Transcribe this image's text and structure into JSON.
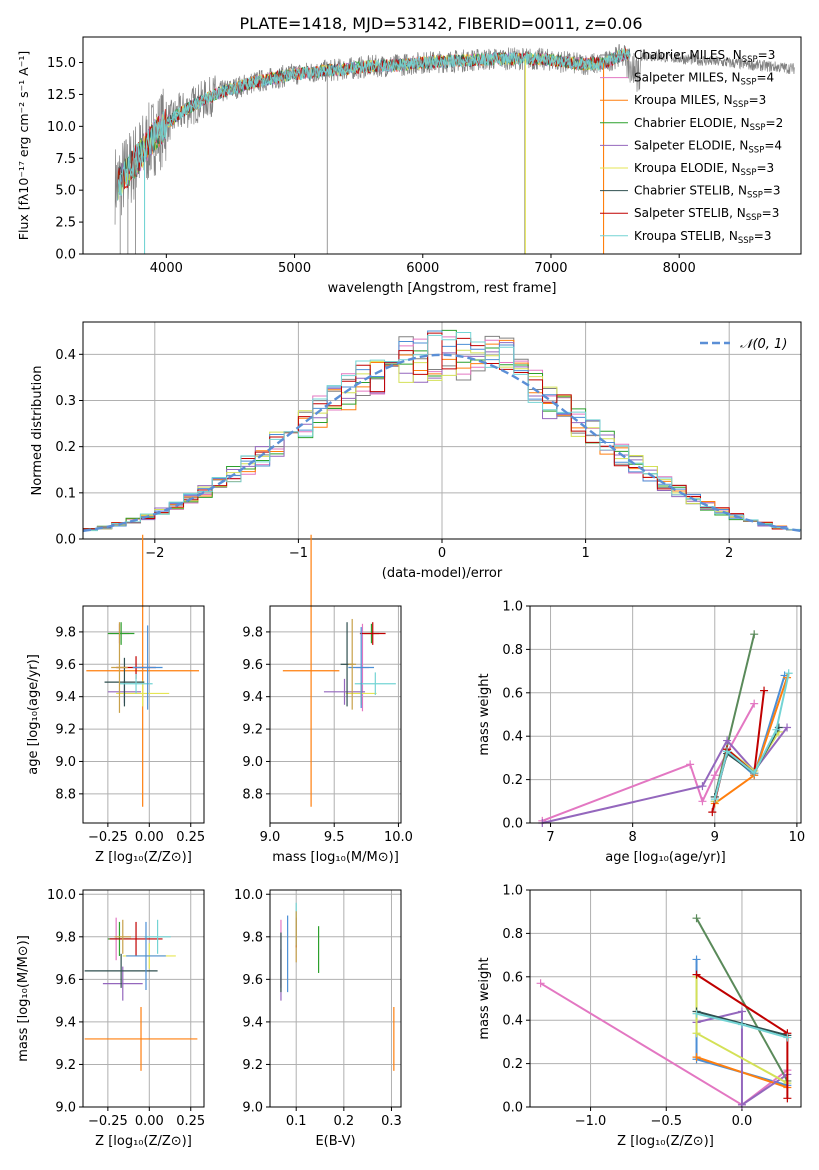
{
  "figure_title": "PLATE=1418, MJD=53142, FIBERID=0011, z=0.06",
  "colors": {
    "data_spectrum": "#808080",
    "series": [
      "#e377c2",
      "#ff7f0e",
      "#2ca02c",
      "#9467bd",
      "#e6e654",
      "#2f4f4f",
      "#c00000",
      "#74d4d4",
      "#4c8fd6",
      "#c8a14a"
    ],
    "normal_curve": "#5b8fd6",
    "grid": "#b0b0b0"
  },
  "legend_spectrum": [
    {
      "label": "Chabrier MILES, N",
      "sub": "SSP",
      "tail": "=3",
      "color": "#808080"
    },
    {
      "label": "Salpeter MILES, N",
      "sub": "SSP",
      "tail": "=4",
      "color": "#e377c2"
    },
    {
      "label": "Kroupa MILES, N",
      "sub": "SSP",
      "tail": "=3",
      "color": "#ff7f0e"
    },
    {
      "label": "Chabrier ELODIE, N",
      "sub": "SSP",
      "tail": "=2",
      "color": "#2ca02c"
    },
    {
      "label": "Salpeter ELODIE, N",
      "sub": "SSP",
      "tail": "=4",
      "color": "#9467bd"
    },
    {
      "label": "Kroupa ELODIE, N",
      "sub": "SSP",
      "tail": "=3",
      "color": "#e6e654"
    },
    {
      "label": "Chabrier STELIB, N",
      "sub": "SSP",
      "tail": "=3",
      "color": "#2f4f4f"
    },
    {
      "label": "Salpeter STELIB, N",
      "sub": "SSP",
      "tail": "=3",
      "color": "#c00000"
    },
    {
      "label": "Kroupa STELIB, N",
      "sub": "SSP",
      "tail": "=3",
      "color": "#74d4d4"
    }
  ],
  "legend_hist": {
    "label": "𝒩(0, 1)"
  },
  "chart_data": [
    {
      "id": "spectrum",
      "type": "line",
      "xlabel": "wavelength [Angstrom, rest frame]",
      "ylabel": "Flux [f",
      "ylabel_display": "Flux [fλ10⁻¹⁷ erg cm⁻² s⁻¹ A⁻¹]",
      "xlim": [
        3350,
        8950
      ],
      "ylim": [
        0,
        17
      ],
      "xticks": [
        "4000",
        "5000",
        "6000",
        "7000",
        "8000"
      ],
      "yticks": [
        "0.0",
        "2.5",
        "5.0",
        "7.5",
        "10.0",
        "12.5",
        "15.0"
      ],
      "continuum": {
        "x": [
          3620,
          3700,
          3800,
          3900,
          4000,
          4100,
          4200,
          4300,
          4400,
          4500,
          4600,
          4700,
          4800,
          4900,
          5000,
          5200,
          5400,
          5600,
          5800,
          6000,
          6200,
          6400,
          6600,
          6800,
          7000,
          7200,
          7400,
          7550,
          7700
        ],
        "y": [
          5.5,
          6.5,
          7.8,
          9.2,
          10.2,
          11.0,
          11.6,
          12.1,
          12.6,
          12.9,
          13.2,
          13.5,
          13.7,
          13.9,
          14.1,
          14.3,
          14.5,
          14.7,
          14.8,
          15.0,
          15.1,
          15.2,
          15.3,
          15.3,
          15.2,
          14.9,
          14.9,
          15.6,
          15.6
        ]
      },
      "model_end": 7620,
      "data_end": 8900,
      "grid": false
    },
    {
      "id": "residual_hist",
      "type": "area",
      "xlabel": "(data-model)/error",
      "ylabel": "Normed distribution",
      "xlim": [
        -2.5,
        2.5
      ],
      "ylim": [
        0,
        0.47
      ],
      "xticks": [
        "−2",
        "−1",
        "0",
        "1",
        "2"
      ],
      "yticks": [
        "0.0",
        "0.1",
        "0.2",
        "0.3",
        "0.4"
      ],
      "bin_width": 0.1,
      "legend_placement": "top-right",
      "grid": true
    },
    {
      "id": "age_vs_Z",
      "type": "scatter",
      "xlabel": "Z [log₁₀(Z/Z⊙)]",
      "ylabel": "age  [log₁₀(age/yr)]",
      "xlim": [
        -0.4,
        0.33
      ],
      "ylim": [
        8.62,
        9.96
      ],
      "xticks": [
        "−0.25",
        "0.00",
        "0.25"
      ],
      "yticks": [
        "8.8",
        "9.0",
        "9.2",
        "9.4",
        "9.6",
        "9.8"
      ],
      "points": [
        {
          "x": -0.18,
          "y": 9.79,
          "xerr": 0.06,
          "yerr": 0.06
        },
        {
          "x": -0.04,
          "y": 9.56,
          "xerr": 0.34,
          "yerr": 0.84
        },
        {
          "x": -0.17,
          "y": 9.79,
          "xerr": 0.08,
          "yerr": 0.07
        },
        {
          "x": -0.15,
          "y": 9.43,
          "xerr": 0.1,
          "yerr": 0.07
        },
        {
          "x": -0.04,
          "y": 9.42,
          "xerr": 0.16,
          "yerr": 0.08
        },
        {
          "x": -0.15,
          "y": 9.49,
          "xerr": 0.12,
          "yerr": 0.15
        },
        {
          "x": -0.08,
          "y": 9.58,
          "xerr": 0.12,
          "yerr": 0.07
        },
        {
          "x": -0.08,
          "y": 9.48,
          "xerr": 0.1,
          "yerr": 0.06
        },
        {
          "x": -0.01,
          "y": 9.58,
          "xerr": 0.09,
          "yerr": 0.26
        },
        {
          "x": -0.18,
          "y": 9.58,
          "xerr": 0.05,
          "yerr": 0.28
        }
      ],
      "grid": true
    },
    {
      "id": "age_vs_mass",
      "type": "scatter",
      "xlabel": "mass [log₁₀(M/M⊙)]",
      "ylabel": "",
      "xlim": [
        9.0,
        10.02
      ],
      "ylim": [
        8.62,
        9.96
      ],
      "xticks": [
        "9.0",
        "9.5",
        "10.0"
      ],
      "yticks": [
        "8.8",
        "9.0",
        "9.2",
        "9.4",
        "9.6",
        "9.8"
      ],
      "points": [
        {
          "x": 9.72,
          "y": 9.58,
          "xerr": 0.05,
          "yerr": 0.27
        },
        {
          "x": 9.32,
          "y": 9.56,
          "xerr": 0.22,
          "yerr": 0.84
        },
        {
          "x": 9.79,
          "y": 9.79,
          "xerr": 0.06,
          "yerr": 0.06
        },
        {
          "x": 9.58,
          "y": 9.43,
          "xerr": 0.16,
          "yerr": 0.08
        },
        {
          "x": 9.71,
          "y": 9.42,
          "xerr": 0.12,
          "yerr": 0.07
        },
        {
          "x": 9.6,
          "y": 9.6,
          "xerr": 0.05,
          "yerr": 0.26
        },
        {
          "x": 9.8,
          "y": 9.79,
          "xerr": 0.1,
          "yerr": 0.07
        },
        {
          "x": 9.82,
          "y": 9.48,
          "xerr": 0.16,
          "yerr": 0.07
        },
        {
          "x": 9.71,
          "y": 9.58,
          "xerr": 0.1,
          "yerr": 0.25
        },
        {
          "x": 9.64,
          "y": 9.6,
          "xerr": 0.03,
          "yerr": 0.28
        }
      ],
      "grid": true
    },
    {
      "id": "mass_weight_vs_age",
      "type": "line",
      "xlabel": "age  [log₁₀(age/yr)]",
      "ylabel": "mass weight",
      "xlim": [
        6.75,
        10.05
      ],
      "ylim": [
        0,
        1
      ],
      "xticks": [
        "7",
        "8",
        "9",
        "10"
      ],
      "yticks": [
        "0.0",
        "0.2",
        "0.4",
        "0.6",
        "0.8",
        "1.0"
      ],
      "series": [
        {
          "x": [
            9.0,
            9.15,
            9.48,
            9.85
          ],
          "y": [
            0.1,
            0.33,
            0.22,
            0.68
          ]
        },
        {
          "x": [
            6.9,
            8.7,
            8.85,
            9.0,
            9.48
          ],
          "y": [
            0.01,
            0.27,
            0.1,
            0.22,
            0.55
          ]
        },
        {
          "x": [
            9.0,
            9.48,
            9.88
          ],
          "y": [
            0.09,
            0.22,
            0.67
          ]
        },
        {
          "x": [
            9.0,
            9.48
          ],
          "y": [
            0.12,
            0.87
          ]
        },
        {
          "x": [
            6.9,
            8.85,
            9.15,
            9.48,
            9.88
          ],
          "y": [
            0.0,
            0.17,
            0.38,
            0.24,
            0.44
          ]
        },
        {
          "x": [
            9.0,
            9.15,
            9.48,
            9.78
          ],
          "y": [
            0.1,
            0.34,
            0.24,
            0.42
          ]
        },
        {
          "x": [
            9.0,
            9.15,
            9.48,
            9.78
          ],
          "y": [
            0.12,
            0.32,
            0.23,
            0.44
          ]
        },
        {
          "x": [
            8.97,
            9.15,
            9.48,
            9.6
          ],
          "y": [
            0.05,
            0.34,
            0.23,
            0.61
          ]
        },
        {
          "x": [
            9.0,
            9.15,
            9.48,
            9.75,
            9.9
          ],
          "y": [
            0.11,
            0.33,
            0.23,
            0.43,
            0.69
          ]
        }
      ],
      "grid": true
    },
    {
      "id": "mass_vs_Z",
      "type": "scatter",
      "xlabel": "Z [log₁₀(Z/Z⊙)]",
      "ylabel": "mass [log₁₀(M/M⊙)]",
      "xlim": [
        -0.4,
        0.33
      ],
      "ylim": [
        9.0,
        10.02
      ],
      "xticks": [
        "−0.25",
        "0.00",
        "0.25"
      ],
      "yticks": [
        "9.0",
        "9.2",
        "9.4",
        "9.6",
        "9.8",
        "10.0"
      ],
      "points": [
        {
          "x": -0.2,
          "y": 9.79,
          "xerr": 0.04,
          "yerr": 0.1
        },
        {
          "x": -0.05,
          "y": 9.32,
          "xerr": 0.34,
          "yerr": 0.15
        },
        {
          "x": -0.18,
          "y": 9.79,
          "xerr": 0.07,
          "yerr": 0.08
        },
        {
          "x": -0.16,
          "y": 9.58,
          "xerr": 0.12,
          "yerr": 0.08
        },
        {
          "x": 0.0,
          "y": 9.71,
          "xerr": 0.16,
          "yerr": 0.06
        },
        {
          "x": -0.17,
          "y": 9.64,
          "xerr": 0.22,
          "yerr": 0.08
        },
        {
          "x": -0.08,
          "y": 9.79,
          "xerr": 0.16,
          "yerr": 0.08
        },
        {
          "x": 0.05,
          "y": 9.8,
          "xerr": 0.08,
          "yerr": 0.08
        },
        {
          "x": -0.02,
          "y": 9.71,
          "xerr": 0.12,
          "yerr": 0.16
        },
        {
          "x": -0.16,
          "y": 9.8,
          "xerr": 0.05,
          "yerr": 0.08
        }
      ],
      "grid": true
    },
    {
      "id": "mass_vs_ebv",
      "type": "scatter",
      "xlabel": "E(B-V)",
      "ylabel": "",
      "xlim": [
        0.045,
        0.32
      ],
      "ylim": [
        9.0,
        10.02
      ],
      "xticks": [
        "0.1",
        "0.2",
        "0.3"
      ],
      "yticks": [
        "9.0",
        "9.2",
        "9.4",
        "9.6",
        "9.8",
        "10.0"
      ],
      "points": [
        {
          "x": 0.068,
          "y": 9.72,
          "xerr": 0,
          "yerr": 0.16
        },
        {
          "x": 0.305,
          "y": 9.32,
          "xerr": 0,
          "yerr": 0.15
        },
        {
          "x": 0.147,
          "y": 9.74,
          "xerr": 0,
          "yerr": 0.11
        },
        {
          "x": 0.068,
          "y": 9.62,
          "xerr": 0,
          "yerr": 0.12
        },
        {
          "x": 0.1,
          "y": 9.84,
          "xerr": 0,
          "yerr": 0.06
        },
        {
          "x": 0.068,
          "y": 9.68,
          "xerr": 0,
          "yerr": 0.14
        },
        {
          "x": 0.1,
          "y": 9.82,
          "xerr": 0,
          "yerr": 0.07
        },
        {
          "x": 0.1,
          "y": 9.86,
          "xerr": 0,
          "yerr": 0.1
        },
        {
          "x": 0.082,
          "y": 9.72,
          "xerr": 0,
          "yerr": 0.18
        },
        {
          "x": 0.1,
          "y": 9.8,
          "xerr": 0,
          "yerr": 0.12
        }
      ],
      "grid": true
    },
    {
      "id": "mass_weight_vs_Z",
      "type": "line",
      "xlabel": "Z [log₁₀(Z/Z⊙)]",
      "ylabel": "mass weight",
      "xlim": [
        -1.4,
        0.39
      ],
      "ylim": [
        0,
        1
      ],
      "xticks": [
        "−1.0",
        "−0.5",
        "0.0"
      ],
      "yticks": [
        "0.0",
        "0.2",
        "0.4",
        "0.6",
        "0.8",
        "1.0"
      ],
      "series": [
        {
          "x": [
            -0.3,
            -0.3,
            0.3
          ],
          "y": [
            0.68,
            0.22,
            0.1
          ]
        },
        {
          "x": [
            -1.33,
            0.0,
            0.3
          ],
          "y": [
            0.57,
            0.01,
            0.17
          ]
        },
        {
          "x": [
            -0.3,
            0.3
          ],
          "y": [
            0.23,
            0.09
          ]
        },
        {
          "x": [
            -0.3,
            0.3
          ],
          "y": [
            0.87,
            0.12
          ]
        },
        {
          "x": [
            -0.3,
            0.0,
            0.0,
            0.3
          ],
          "y": [
            0.39,
            0.44,
            0.01,
            0.15
          ]
        },
        {
          "x": [
            -0.3,
            -0.3,
            0.3
          ],
          "y": [
            0.6,
            0.34,
            0.11
          ]
        },
        {
          "x": [
            -0.3,
            0.3
          ],
          "y": [
            0.44,
            0.33
          ]
        },
        {
          "x": [
            -0.3,
            0.3,
            0.3
          ],
          "y": [
            0.61,
            0.34,
            0.04
          ]
        },
        {
          "x": [
            -0.3,
            0.0,
            0.3
          ],
          "y": [
            0.43,
            0.38,
            0.32
          ]
        }
      ],
      "grid": true
    }
  ]
}
